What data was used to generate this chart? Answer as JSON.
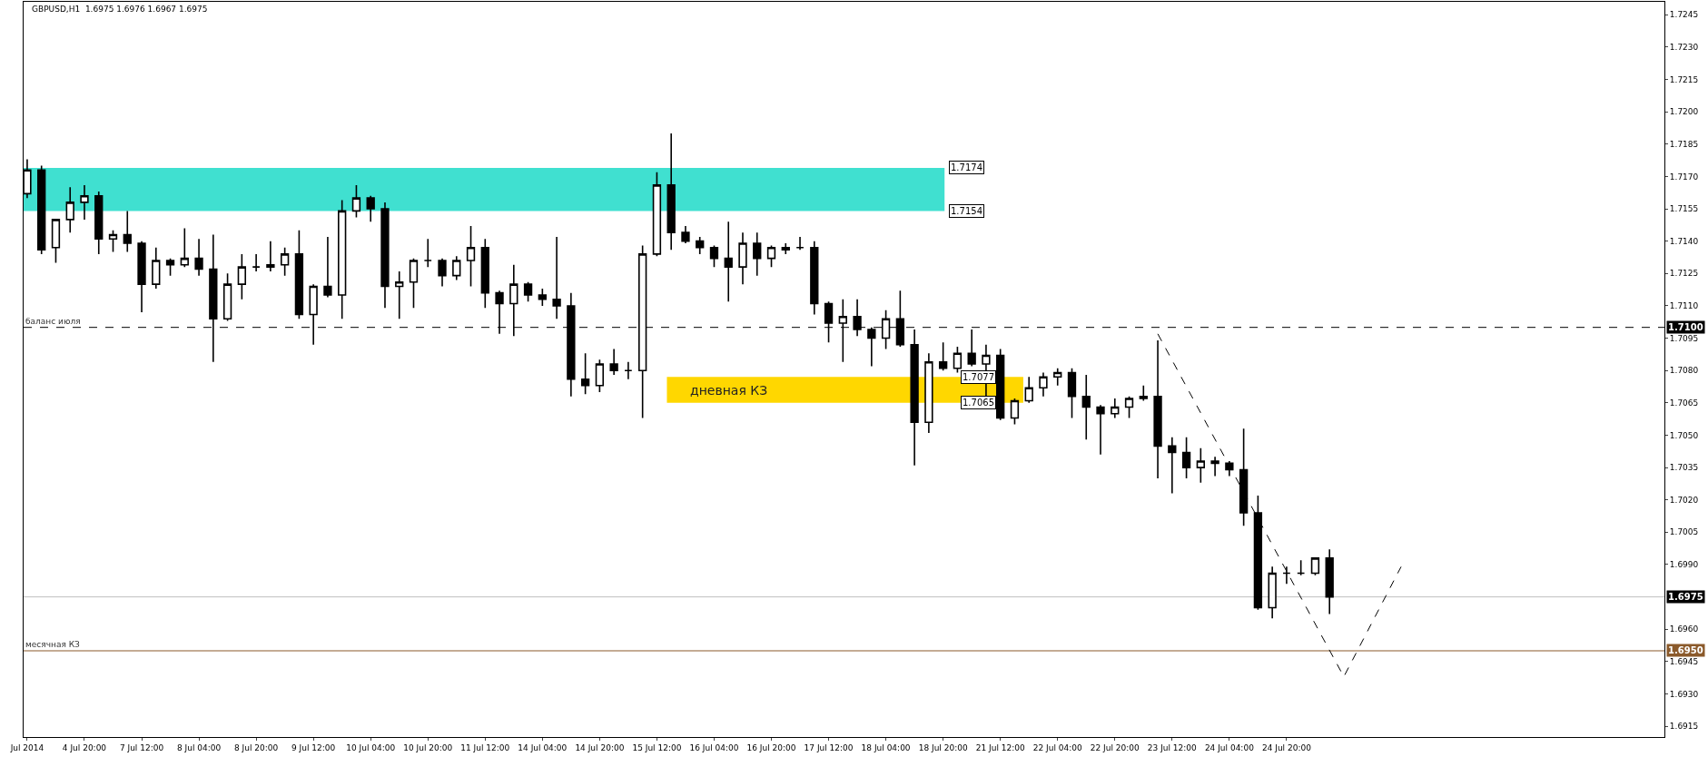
{
  "chart_data": {
    "type": "candlestick",
    "title": "GBPUSD,H1  1.6975 1.6976 1.6967 1.6975",
    "categories": [
      "Jul 2014",
      null,
      null,
      null,
      "4 Jul 20:00",
      null,
      null,
      null,
      "7 Jul 12:00",
      null,
      null,
      null,
      "8 Jul 04:00",
      null,
      null,
      null,
      "8 Jul 20:00",
      null,
      null,
      null,
      "9 Jul 12:00",
      null,
      null,
      null,
      "10 Jul 04:00",
      null,
      null,
      null,
      "10 Jul 20:00",
      null,
      null,
      null,
      "11 Jul 12:00",
      null,
      null,
      null,
      "14 Jul 04:00",
      null,
      null,
      null,
      "14 Jul 20:00",
      null,
      null,
      null,
      "15 Jul 12:00",
      null,
      null,
      null,
      "16 Jul 04:00",
      null,
      null,
      null,
      "16 Jul 20:00",
      null,
      null,
      null,
      "17 Jul 12:00",
      null,
      null,
      null,
      "18 Jul 04:00",
      null,
      null,
      null,
      "18 Jul 20:00",
      null,
      null,
      null,
      "21 Jul 12:00",
      null,
      null,
      null,
      "22 Jul 04:00",
      null,
      null,
      null,
      "22 Jul 20:00",
      null,
      null,
      null,
      "23 Jul 12:00",
      null,
      null,
      null,
      "24 Jul 04:00",
      null,
      null,
      null,
      "24 Jul 20:00",
      null,
      null,
      null,
      null,
      null,
      null,
      null,
      null,
      null,
      null,
      null,
      null,
      null,
      null,
      null,
      null,
      null,
      null,
      null,
      null,
      null,
      null,
      null,
      null,
      null,
      null
    ],
    "ohlc": [
      [
        1.7162,
        1.7178,
        1.716,
        1.7173
      ],
      [
        1.7173,
        1.7175,
        1.7134,
        1.7136
      ],
      [
        1.7137,
        1.715,
        1.713,
        1.715
      ],
      [
        1.715,
        1.7165,
        1.7144,
        1.7158
      ],
      [
        1.7158,
        1.7166,
        1.715,
        1.7161
      ],
      [
        1.7161,
        1.7163,
        1.7134,
        1.7141
      ],
      [
        1.7141,
        1.7145,
        1.7135,
        1.7143
      ],
      [
        1.7143,
        1.7154,
        1.7135,
        1.7139
      ],
      [
        1.7139,
        1.714,
        1.7107,
        1.712
      ],
      [
        1.712,
        1.7137,
        1.7118,
        1.7131
      ],
      [
        1.7131,
        1.7132,
        1.7124,
        1.7129
      ],
      [
        1.7129,
        1.7146,
        1.7128,
        1.7132
      ],
      [
        1.7132,
        1.7141,
        1.7124,
        1.7127
      ],
      [
        1.7127,
        1.7143,
        1.7084,
        1.7104
      ],
      [
        1.7104,
        1.7125,
        1.7103,
        1.712
      ],
      [
        1.712,
        1.7134,
        1.7113,
        1.7128
      ],
      [
        1.7128,
        1.7134,
        1.7126,
        1.7128
      ],
      [
        1.7128,
        1.714,
        1.7126,
        1.7129
      ],
      [
        1.7129,
        1.7137,
        1.7124,
        1.7134
      ],
      [
        1.7134,
        1.7145,
        1.7104,
        1.7106
      ],
      [
        1.7106,
        1.712,
        1.7092,
        1.7119
      ],
      [
        1.7119,
        1.7142,
        1.7114,
        1.7115
      ],
      [
        1.7115,
        1.7159,
        1.7104,
        1.7154
      ],
      [
        1.7154,
        1.7166,
        1.7151,
        1.716
      ],
      [
        1.716,
        1.7161,
        1.7149,
        1.7155
      ],
      [
        1.7155,
        1.7158,
        1.7109,
        1.7119
      ],
      [
        1.7119,
        1.7126,
        1.7104,
        1.7121
      ],
      [
        1.7121,
        1.7132,
        1.7109,
        1.7131
      ],
      [
        1.7131,
        1.7141,
        1.7128,
        1.7131
      ],
      [
        1.7131,
        1.7132,
        1.7119,
        1.7124
      ],
      [
        1.7124,
        1.7133,
        1.7122,
        1.7131
      ],
      [
        1.7131,
        1.7147,
        1.7119,
        1.7137
      ],
      [
        1.7137,
        1.7141,
        1.7109,
        1.7116
      ],
      [
        1.7116,
        1.7117,
        1.7097,
        1.7111
      ],
      [
        1.7111,
        1.7129,
        1.7096,
        1.712
      ],
      [
        1.712,
        1.7121,
        1.7112,
        1.7115
      ],
      [
        1.7115,
        1.7118,
        1.711,
        1.7113
      ],
      [
        1.7113,
        1.7142,
        1.7104,
        1.711
      ],
      [
        1.711,
        1.7116,
        1.7068,
        1.7076
      ],
      [
        1.7076,
        1.7088,
        1.7069,
        1.7073
      ],
      [
        1.7073,
        1.7085,
        1.707,
        1.7083
      ],
      [
        1.7083,
        1.709,
        1.7078,
        1.708
      ],
      [
        1.708,
        1.7084,
        1.7076,
        1.708
      ],
      [
        1.708,
        1.7138,
        1.7058,
        1.7134
      ],
      [
        1.7134,
        1.7172,
        1.7133,
        1.7166
      ],
      [
        1.7166,
        1.719,
        1.7136,
        1.7144
      ],
      [
        1.7144,
        1.7147,
        1.7139,
        1.714
      ],
      [
        1.714,
        1.7142,
        1.7134,
        1.7137
      ],
      [
        1.7137,
        1.7138,
        1.7128,
        1.7132
      ],
      [
        1.7132,
        1.7149,
        1.7112,
        1.7128
      ],
      [
        1.7128,
        1.7144,
        1.712,
        1.7139
      ],
      [
        1.7139,
        1.7144,
        1.7124,
        1.7132
      ],
      [
        1.7132,
        1.7138,
        1.7128,
        1.7137
      ],
      [
        1.7137,
        1.7139,
        1.7134,
        1.7136
      ],
      [
        1.7137,
        1.7142,
        1.7136,
        1.7137
      ],
      [
        1.7137,
        1.714,
        1.7106,
        1.7111
      ],
      [
        1.7111,
        1.7112,
        1.7093,
        1.7102
      ],
      [
        1.7102,
        1.7113,
        1.7084,
        1.7105
      ],
      [
        1.7105,
        1.7113,
        1.7096,
        1.7099
      ],
      [
        1.7099,
        1.71,
        1.7082,
        1.7095
      ],
      [
        1.7095,
        1.7108,
        1.709,
        1.7104
      ],
      [
        1.7104,
        1.7117,
        1.7091,
        1.7092
      ],
      [
        1.7092,
        1.7099,
        1.7036,
        1.7056
      ],
      [
        1.7056,
        1.7088,
        1.7051,
        1.7084
      ],
      [
        1.7084,
        1.7093,
        1.708,
        1.7081
      ],
      [
        1.7081,
        1.7091,
        1.7079,
        1.7088
      ],
      [
        1.7088,
        1.7099,
        1.7082,
        1.7083
      ],
      [
        1.7083,
        1.7092,
        1.7068,
        1.7087
      ],
      [
        1.7087,
        1.709,
        1.7057,
        1.7058
      ],
      [
        1.7058,
        1.7067,
        1.7055,
        1.7066
      ],
      [
        1.7066,
        1.7077,
        1.7065,
        1.7072
      ],
      [
        1.7072,
        1.7079,
        1.7068,
        1.7077
      ],
      [
        1.7077,
        1.7081,
        1.7073,
        1.7079
      ],
      [
        1.7079,
        1.7081,
        1.7058,
        1.7068
      ],
      [
        1.7068,
        1.7078,
        1.7048,
        1.7063
      ],
      [
        1.7063,
        1.7064,
        1.7041,
        1.706
      ],
      [
        1.706,
        1.7067,
        1.7058,
        1.7063
      ],
      [
        1.7063,
        1.7068,
        1.7058,
        1.7067
      ],
      [
        1.7067,
        1.7073,
        1.7066,
        1.7068
      ],
      [
        1.7068,
        1.7094,
        1.703,
        1.7045
      ],
      [
        1.7045,
        1.7049,
        1.7023,
        1.7042
      ],
      [
        1.7042,
        1.7049,
        1.703,
        1.7035
      ],
      [
        1.7035,
        1.7044,
        1.7028,
        1.7038
      ],
      [
        1.7038,
        1.704,
        1.7031,
        1.7037
      ],
      [
        1.7037,
        1.7038,
        1.7031,
        1.7034
      ],
      [
        1.7034,
        1.7053,
        1.7008,
        1.7014
      ],
      [
        1.7014,
        1.7022,
        1.6969,
        1.697
      ],
      [
        1.697,
        1.6989,
        1.6965,
        1.6986
      ],
      [
        1.6986,
        1.6989,
        1.6981,
        1.6986
      ],
      [
        1.6986,
        1.6992,
        1.6985,
        1.6986
      ],
      [
        1.6986,
        1.6993,
        1.6985,
        1.6993
      ],
      [
        1.6993,
        1.6997,
        1.6967,
        1.6975
      ],
      null,
      null,
      null,
      null,
      null,
      null,
      null,
      null,
      null,
      null,
      null,
      null,
      null,
      null,
      null,
      null,
      null,
      null,
      null,
      null,
      null,
      null,
      null
    ],
    "series": [
      {
        "type": "line",
        "color": "#000000",
        "line_style": "dashed",
        "values": [
          null,
          null,
          null,
          null,
          null,
          null,
          null,
          null,
          null,
          null,
          null,
          null,
          null,
          null,
          null,
          null,
          null,
          null,
          null,
          null,
          null,
          null,
          null,
          null,
          null,
          null,
          null,
          null,
          null,
          null,
          null,
          null,
          null,
          null,
          null,
          null,
          null,
          null,
          null,
          null,
          null,
          null,
          null,
          null,
          null,
          null,
          null,
          null,
          null,
          null,
          null,
          null,
          null,
          null,
          null,
          null,
          null,
          null,
          null,
          null,
          null,
          null,
          null,
          null,
          null,
          null,
          null,
          null,
          null,
          null,
          null,
          null,
          null,
          null,
          null,
          null,
          null,
          null,
          null,
          1.7097,
          null,
          null,
          null,
          null,
          null,
          null,
          null,
          null,
          null,
          null,
          null,
          null,
          1.6938,
          null,
          null,
          null,
          1.6989,
          null,
          null,
          null,
          null,
          null,
          null,
          null,
          null,
          null,
          null,
          null,
          null,
          null,
          null,
          null,
          null,
          null,
          null
        ]
      }
    ],
    "ylim": [
      1.691,
      1.7251
    ],
    "yticks": [
      {
        "value": 1.6915,
        "label": "1.6915"
      },
      {
        "value": 1.693,
        "label": "1.6930"
      },
      {
        "value": 1.6945,
        "label": "1.6945"
      },
      {
        "value": 1.696,
        "label": "1.6960"
      },
      {
        "value": 1.699,
        "label": "1.6990"
      },
      {
        "value": 1.7005,
        "label": "1.7005"
      },
      {
        "value": 1.702,
        "label": "1.7020"
      },
      {
        "value": 1.7035,
        "label": "1.7035"
      },
      {
        "value": 1.705,
        "label": "1.7050"
      },
      {
        "value": 1.7065,
        "label": "1.7065"
      },
      {
        "value": 1.708,
        "label": "1.7080"
      },
      {
        "value": 1.7095,
        "label": "1.7095"
      },
      {
        "value": 1.711,
        "label": "1.7110"
      },
      {
        "value": 1.7125,
        "label": "1.7125"
      },
      {
        "value": 1.714,
        "label": "1.7140"
      },
      {
        "value": 1.7155,
        "label": "1.7155"
      },
      {
        "value": 1.717,
        "label": "1.7170"
      },
      {
        "value": 1.7185,
        "label": "1.7185"
      },
      {
        "value": 1.72,
        "label": "1.7200"
      },
      {
        "value": 1.7215,
        "label": "1.7215"
      },
      {
        "value": 1.723,
        "label": "1.7230"
      },
      {
        "value": 1.7245,
        "label": "1.7245"
      }
    ],
    "bands": [
      {
        "axis": "y",
        "from": 1.7154,
        "to": 1.7174,
        "label": null,
        "color": "#40e0d0"
      },
      {
        "axis": "y",
        "from": 1.7065,
        "to": 1.7077,
        "label": "дневная КЗ",
        "color": "#ffd700"
      }
    ],
    "ref_lines": [
      {
        "axis": "y",
        "value": 1.71,
        "label": "баланс июля",
        "color": "#000000",
        "line_style": "dashed"
      },
      {
        "axis": "y",
        "value": 1.6975,
        "label": null,
        "color": "#c0c0c0",
        "line_style": "solid"
      },
      {
        "axis": "y",
        "value": 1.695,
        "label": "месячная КЗ",
        "color": "#8b5a2b",
        "line_style": "solid"
      }
    ],
    "annotations": [
      {
        "text": "1.7174",
        "y": 1.7174
      },
      {
        "text": "1.7154",
        "y": 1.7154
      },
      {
        "text": "1.7077",
        "y": 1.7077
      },
      {
        "text": "1.7065",
        "y": 1.7065
      },
      {
        "text": "1.7100",
        "y": 1.71
      },
      {
        "text": "1.6975",
        "y": 1.6975
      },
      {
        "text": "1.6950",
        "y": 1.695
      }
    ],
    "grid": false
  }
}
